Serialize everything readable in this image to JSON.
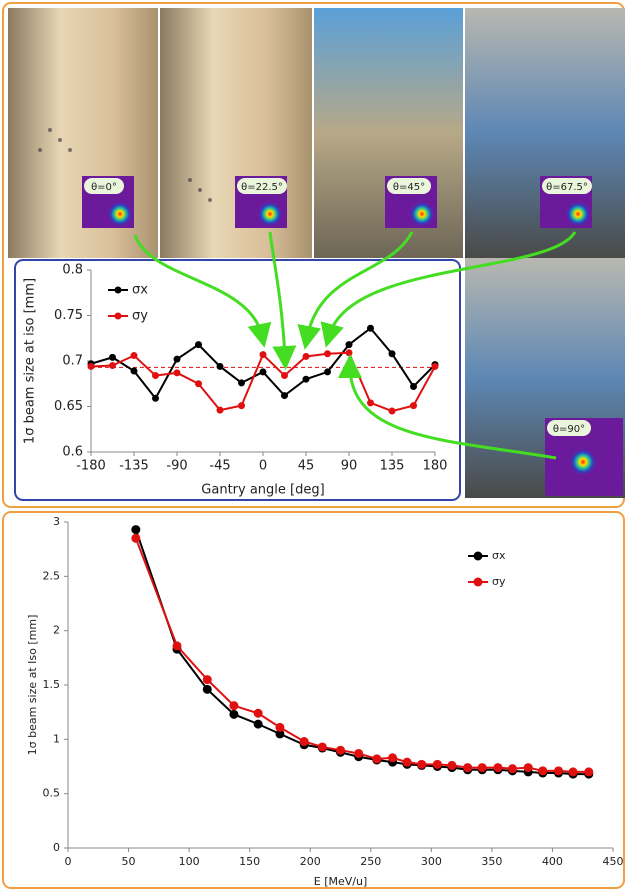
{
  "chart_data": [
    {
      "type": "line",
      "x_label": "Gantry angle [deg]",
      "y_label": "1σ beam size at iso  [mm]",
      "x": [
        -180,
        -157.5,
        -135,
        -112.5,
        -90,
        -67.5,
        -45,
        -22.5,
        0,
        22.5,
        45,
        67.5,
        90,
        112.5,
        135,
        157.5,
        180
      ],
      "series": [
        {
          "name": "σx",
          "color": "#000000",
          "values": [
            0.697,
            0.704,
            0.689,
            0.659,
            0.702,
            0.718,
            0.694,
            0.676,
            0.688,
            0.662,
            0.68,
            0.688,
            0.718,
            0.736,
            0.708,
            0.672,
            0.696
          ]
        },
        {
          "name": "σy",
          "color": "#e01010",
          "values": [
            0.694,
            0.695,
            0.706,
            0.684,
            0.687,
            0.675,
            0.646,
            0.651,
            0.707,
            0.684,
            0.705,
            0.708,
            0.709,
            0.654,
            0.645,
            0.651,
            0.694
          ]
        }
      ],
      "reference_line": {
        "value": 0.693,
        "color": "#e01010",
        "style": "dashed"
      },
      "xlim": [
        -180,
        180
      ],
      "xticks": [
        -180,
        -135,
        -90,
        -45,
        0,
        45,
        90,
        135,
        180
      ],
      "ylim": [
        0.6,
        0.8
      ],
      "yticks": [
        0.6,
        0.65,
        0.7,
        0.75,
        0.8
      ],
      "grid": false,
      "legend": "top-left"
    },
    {
      "type": "line",
      "x_label": "E [MeV/u]",
      "y_label": "1σ beam size at Iso [mm]",
      "x": [
        56,
        90,
        115,
        137,
        157,
        175,
        195,
        210,
        225,
        240,
        255,
        268,
        280,
        292,
        305,
        317,
        330,
        342,
        355,
        367,
        380,
        392,
        405,
        417,
        430
      ],
      "series": [
        {
          "name": "σx",
          "color": "#000000",
          "values": [
            2.93,
            1.83,
            1.46,
            1.23,
            1.14,
            1.05,
            0.95,
            0.92,
            0.88,
            0.84,
            0.81,
            0.79,
            0.77,
            0.76,
            0.75,
            0.74,
            0.72,
            0.72,
            0.72,
            0.71,
            0.7,
            0.69,
            0.69,
            0.68,
            0.68
          ]
        },
        {
          "name": "σy",
          "color": "#e01010",
          "values": [
            2.85,
            1.86,
            1.55,
            1.31,
            1.24,
            1.11,
            0.98,
            0.93,
            0.9,
            0.87,
            0.82,
            0.83,
            0.79,
            0.77,
            0.77,
            0.76,
            0.74,
            0.74,
            0.74,
            0.73,
            0.74,
            0.71,
            0.71,
            0.7,
            0.7
          ]
        }
      ],
      "xlim": [
        0,
        450
      ],
      "xticks": [
        0,
        50,
        100,
        150,
        200,
        250,
        300,
        350,
        400,
        450
      ],
      "ylim": [
        0,
        3
      ],
      "yticks": [
        0,
        0.5,
        1,
        1.5,
        2,
        2.5,
        3
      ],
      "grid": false,
      "legend": "top-right"
    }
  ],
  "photo_labels": [
    "θ=0°",
    "θ=22.5°",
    "θ=45°",
    "θ=67.5°",
    "θ=90°"
  ]
}
